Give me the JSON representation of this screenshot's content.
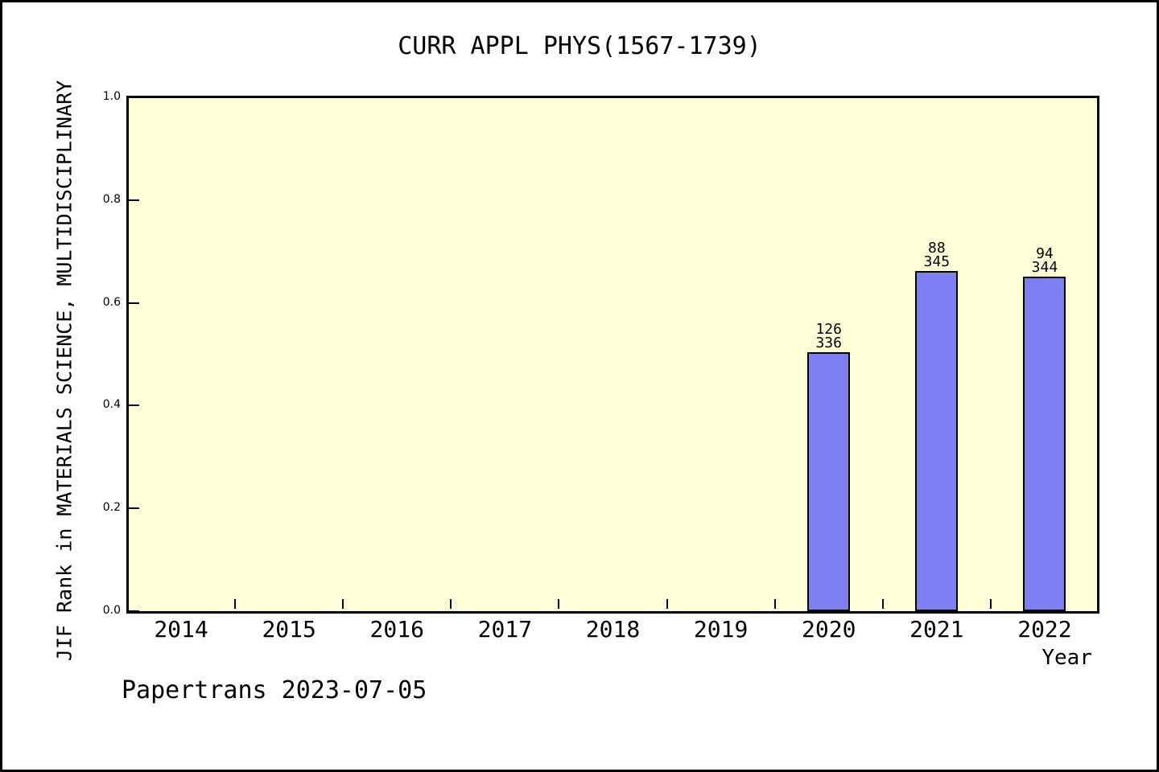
{
  "page": {
    "footer_credit": "Papertrans 2023-07-05"
  },
  "chart_data": {
    "type": "bar",
    "title": "CURR APPL PHYS(1567-1739)",
    "xlabel": "Year",
    "ylabel": "JIF Rank in MATERIALS SCIENCE, MULTIDISCIPLINARY",
    "ylim": [
      0.0,
      1.0
    ],
    "yticks": [
      0.0,
      0.2,
      0.4,
      0.6,
      0.8,
      1.0
    ],
    "ytick_labels": [
      "0.0",
      "0.2",
      "0.4",
      "0.6",
      "0.8",
      "1.0"
    ],
    "categories": [
      "2014",
      "2015",
      "2016",
      "2017",
      "2018",
      "2019",
      "2020",
      "2021",
      "2022"
    ],
    "values": [
      null,
      null,
      null,
      null,
      null,
      null,
      0.504,
      0.662,
      0.651
    ],
    "bar_annotations": [
      null,
      null,
      null,
      null,
      null,
      null,
      {
        "rank": "126",
        "total": "336"
      },
      {
        "rank": "88",
        "total": "345"
      },
      {
        "rank": "94",
        "total": "344"
      }
    ],
    "grid": false,
    "legend": null,
    "plot_bg_color": "#ffffd8",
    "bar_color": "#7f7ff4",
    "bar_border_color": "#000000",
    "axis_color": "#000000"
  }
}
